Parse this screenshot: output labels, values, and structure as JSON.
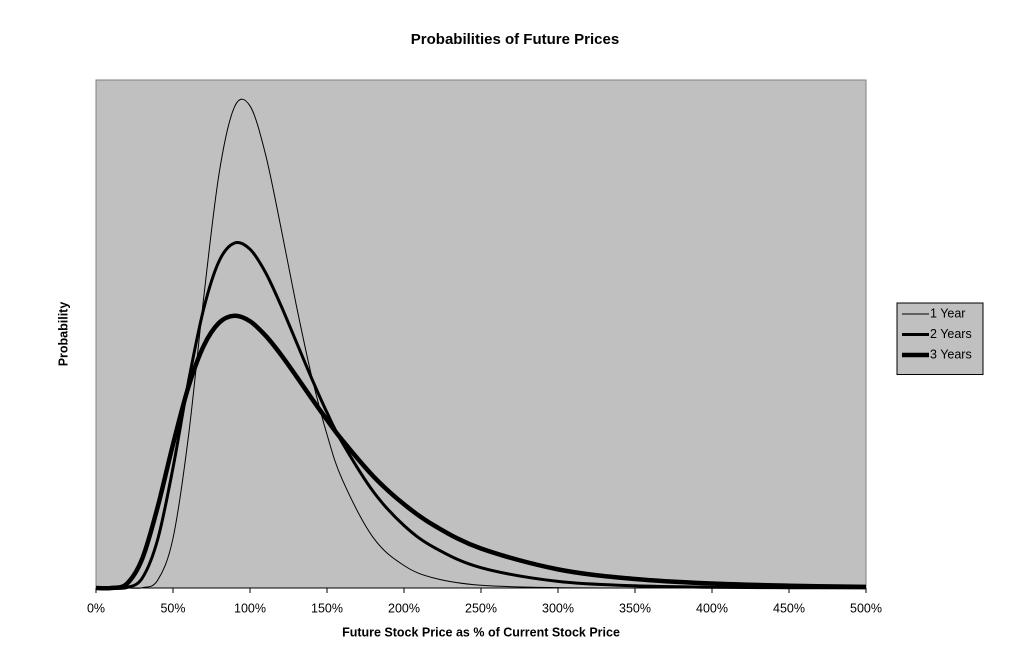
{
  "chart_data": {
    "type": "line",
    "title": "Probabilities of Future Prices",
    "x_label": "Future Stock Price as % of Current Stock Price",
    "y_label": "Probability",
    "x": [
      0,
      10,
      20,
      30,
      40,
      50,
      60,
      70,
      80,
      90,
      100,
      110,
      120,
      130,
      140,
      150,
      160,
      180,
      200,
      220,
      250,
      300,
      350,
      400,
      450,
      500
    ],
    "series": [
      {
        "name": "1 Year",
        "color": "#000000",
        "width": 1,
        "values": [
          0,
          0,
          0,
          0.0008,
          0.021,
          0.136,
          0.414,
          0.797,
          1.136,
          1.317,
          1.319,
          1.188,
          0.988,
          0.775,
          0.58,
          0.42,
          0.296,
          0.138,
          0.0616,
          0.0266,
          0.0074,
          0.0009,
          0.0001,
          0,
          0,
          0
        ]
      },
      {
        "name": "2 Years",
        "color": "#000000",
        "width": 3,
        "values": [
          0,
          0,
          0.0013,
          0.0269,
          0.132,
          0.329,
          0.564,
          0.765,
          0.895,
          0.944,
          0.927,
          0.864,
          0.774,
          0.674,
          0.574,
          0.48,
          0.397,
          0.264,
          0.171,
          0.11,
          0.0556,
          0.018,
          0.006,
          0.0021,
          0.0008,
          0.0003
        ]
      },
      {
        "name": "3 Years",
        "color": "#000000",
        "width": 4.5,
        "values": [
          0,
          0.0001,
          0.0114,
          0.0799,
          0.221,
          0.393,
          0.55,
          0.663,
          0.726,
          0.745,
          0.73,
          0.691,
          0.639,
          0.58,
          0.519,
          0.46,
          0.404,
          0.306,
          0.229,
          0.17,
          0.108,
          0.051,
          0.0246,
          0.0122,
          0.0062,
          0.0032
        ]
      }
    ],
    "xlim": [
      0,
      500
    ],
    "xticks": [
      {
        "value": 0,
        "label": "0%"
      },
      {
        "value": 50,
        "label": "50%"
      },
      {
        "value": 100,
        "label": "100%"
      },
      {
        "value": 150,
        "label": "150%"
      },
      {
        "value": 200,
        "label": "200%"
      },
      {
        "value": 250,
        "label": "250%"
      },
      {
        "value": 300,
        "label": "300%"
      },
      {
        "value": 350,
        "label": "350%"
      },
      {
        "value": 400,
        "label": "400%"
      },
      {
        "value": 450,
        "label": "450%"
      },
      {
        "value": 500,
        "label": "500%"
      }
    ],
    "ylim": [
      0,
      1.39
    ],
    "plot_background": "#c0c0c0",
    "legend": "right"
  }
}
